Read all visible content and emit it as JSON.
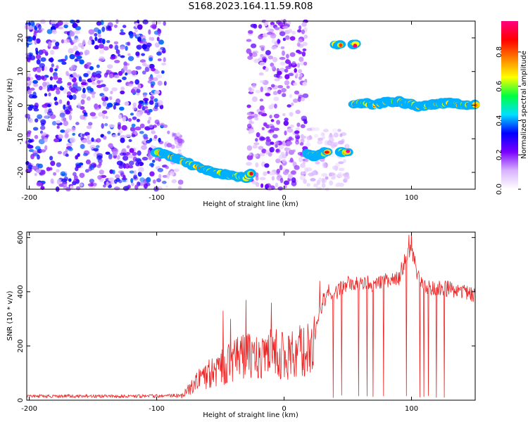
{
  "title": "S168.2023.164.11.59.R08",
  "chart_data": [
    {
      "type": "heatmap",
      "xlabel": "Height of straight line (km)",
      "ylabel": "Frequency (Hz)",
      "xlim": [
        -202,
        150
      ],
      "ylim": [
        -25,
        25
      ],
      "xticks": [
        -200,
        -100,
        0,
        100
      ],
      "yticks": [
        -20,
        -10,
        0,
        10,
        20
      ],
      "grid": false,
      "colorbar": {
        "label": "Normalized spectral amplitude",
        "range": [
          0,
          0.98
        ],
        "ticks": [
          0.0,
          0.2,
          0.4,
          0.6,
          0.8
        ],
        "tick_labels": [
          "0.0",
          "0.2",
          "0.4",
          "0.6",
          "0.8"
        ],
        "colors": [
          "#ffffff",
          "#d9b3ff",
          "#7a00ff",
          "#0000ff",
          "#00e0ff",
          "#00ff40",
          "#ffff00",
          "#ff8000",
          "#ff0000",
          "#ff0080"
        ]
      },
      "ridges": [
        {
          "x": [
            -100,
            -90,
            -80,
            -70,
            -60,
            -50,
            -40,
            -30,
            -26
          ],
          "y": [
            -14,
            -15,
            -16.5,
            -18,
            -19.5,
            -20.5,
            -21,
            -21.5,
            -20.5
          ]
        },
        {
          "x": [
            18,
            24,
            30,
            34
          ],
          "y": [
            -14.5,
            -15,
            -14.5,
            -14
          ]
        },
        {
          "x": [
            45,
            50
          ],
          "y": [
            -14,
            -14
          ]
        },
        {
          "x": [
            40,
            44
          ],
          "y": [
            18,
            18
          ]
        },
        {
          "x": [
            54,
            56
          ],
          "y": [
            18,
            18
          ]
        },
        {
          "x": [
            55,
            60,
            65,
            70,
            75,
            80,
            85,
            90,
            95,
            100,
            105,
            110,
            115,
            120,
            125,
            130,
            135,
            140,
            150
          ],
          "y": [
            0.5,
            0.5,
            0.5,
            0,
            0.5,
            1,
            1,
            1,
            0.5,
            0.5,
            -0.5,
            0,
            0,
            0.5,
            0.5,
            0.5,
            0.5,
            0,
            0
          ]
        }
      ],
      "noise_regions": [
        {
          "x": [
            -202,
            -93
          ],
          "y": [
            -25,
            25
          ],
          "level": 0.3
        },
        {
          "x": [
            -93,
            -80
          ],
          "y": [
            -25,
            -8
          ],
          "level": 0.15
        },
        {
          "x": [
            -28,
            17
          ],
          "y": [
            -25,
            25
          ],
          "level": 0.2
        },
        {
          "x": [
            17,
            50
          ],
          "y": [
            -25,
            -7
          ],
          "level": 0.1
        }
      ]
    },
    {
      "type": "line",
      "xlabel": "Height of straight line (km)",
      "ylabel": "SNR (10 * v/v)",
      "xlim": [
        -202,
        150
      ],
      "ylim": [
        0,
        620
      ],
      "xticks": [
        -200,
        -100,
        0,
        100
      ],
      "yticks": [
        0,
        200,
        400,
        600
      ],
      "grid": false,
      "series": [
        {
          "color": "#ee2222",
          "envelope_x": [
            -202,
            -100,
            -80,
            -70,
            -60,
            -50,
            -40,
            -30,
            -20,
            -10,
            0,
            10,
            20,
            25,
            30,
            35,
            40,
            50,
            60,
            70,
            80,
            90,
            95,
            100,
            105,
            110,
            120,
            130,
            140,
            150
          ],
          "envelope_y": [
            15,
            15,
            20,
            80,
            120,
            150,
            180,
            200,
            210,
            220,
            210,
            220,
            230,
            260,
            360,
            400,
            395,
            430,
            430,
            430,
            440,
            450,
            520,
            560,
            460,
            420,
            415,
            410,
            400,
            390
          ],
          "spikes": [
            {
              "x": -48,
              "y": 330
            },
            {
              "x": -42,
              "y": 300
            },
            {
              "x": -30,
              "y": 370
            },
            {
              "x": -10,
              "y": 360
            },
            {
              "x": 28,
              "y": 440
            },
            {
              "x": 98,
              "y": 610
            },
            {
              "x": 100,
              "y": 620
            }
          ]
        }
      ]
    }
  ]
}
